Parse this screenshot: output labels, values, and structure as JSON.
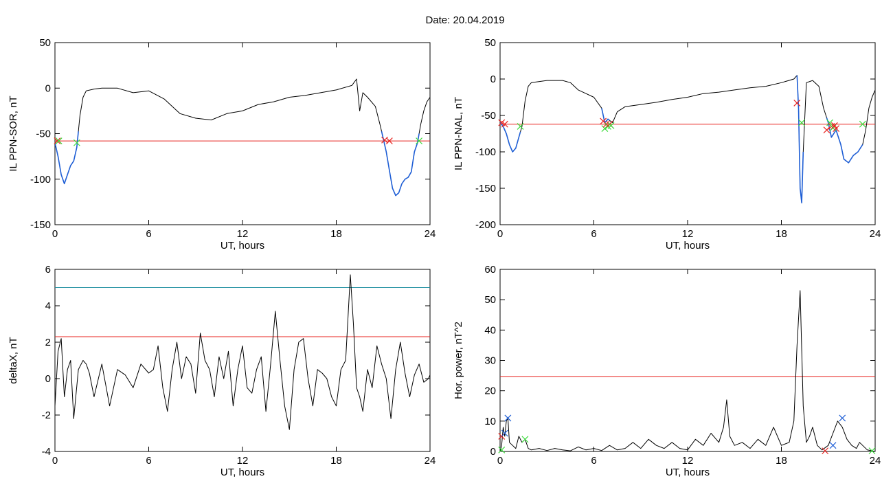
{
  "figure": {
    "title": "Date:  20.04.2019",
    "colors": {
      "trace": "#000000",
      "threshold": "#e8231f",
      "upper_threshold": "#1e8fa0",
      "highlight": "#1f5fd6",
      "marker_red": "#e8231f",
      "marker_green": "#3ddc3d",
      "marker_blue": "#1f5fd6"
    }
  },
  "chart_data": [
    {
      "type": "line",
      "id": "il-sor",
      "title": "",
      "xlabel": "UT, hours",
      "ylabel": "IL PPN-SOR, nT",
      "xlim": [
        0,
        24
      ],
      "ylim": [
        -150,
        50
      ],
      "xticks": [
        0,
        6,
        12,
        18,
        24
      ],
      "yticks": [
        -150,
        -100,
        -50,
        0,
        50
      ],
      "threshold": -58,
      "series": [
        {
          "style": "trace",
          "x": [
            0,
            0.2,
            0.4,
            0.6,
            0.8,
            1.0,
            1.2,
            1.4,
            1.6,
            1.8,
            2.0,
            2.5,
            3.0,
            4.0,
            5.0,
            6.0,
            7.0,
            7.5,
            8.0,
            9.0,
            10.0,
            11.0,
            12.0,
            13.0,
            14.0,
            15.0,
            16.0,
            17.0,
            18.0,
            19.0,
            19.3,
            19.5,
            19.7,
            20.0,
            20.5,
            20.8,
            21.0,
            21.2,
            21.4,
            21.6,
            21.8,
            22.0,
            22.2,
            22.4,
            22.6,
            22.8,
            23.0,
            23.2,
            23.4,
            23.6,
            23.8,
            24.0
          ],
          "y": [
            -60,
            -75,
            -95,
            -105,
            -95,
            -85,
            -80,
            -65,
            -30,
            -10,
            -3,
            -1,
            0,
            0,
            -5,
            -3,
            -12,
            -20,
            -28,
            -33,
            -35,
            -28,
            -25,
            -18,
            -15,
            -10,
            -8,
            -5,
            -2,
            3,
            10,
            -25,
            -5,
            -10,
            -20,
            -40,
            -55,
            -70,
            -90,
            -110,
            -118,
            -115,
            -105,
            -100,
            -98,
            -92,
            -70,
            -60,
            -40,
            -25,
            -15,
            -10
          ]
        }
      ],
      "highlight_segments": [
        [
          0,
          1.5
        ],
        [
          20.9,
          23.3
        ]
      ],
      "markers": [
        {
          "x": 0.15,
          "y": -58,
          "color": "red"
        },
        {
          "x": 0.25,
          "y": -58,
          "color": "green"
        },
        {
          "x": 1.4,
          "y": -60,
          "color": "green"
        },
        {
          "x": 21.1,
          "y": -57,
          "color": "red"
        },
        {
          "x": 21.4,
          "y": -58,
          "color": "red"
        },
        {
          "x": 23.3,
          "y": -58,
          "color": "green"
        }
      ]
    },
    {
      "type": "line",
      "id": "il-nal",
      "title": "",
      "xlabel": "UT, hours",
      "ylabel": "IL PPN-NAL, nT",
      "xlim": [
        0,
        24
      ],
      "ylim": [
        -200,
        50
      ],
      "xticks": [
        0,
        6,
        12,
        18,
        24
      ],
      "yticks": [
        -200,
        -150,
        -100,
        -50,
        0,
        50
      ],
      "threshold": -62,
      "series": [
        {
          "style": "trace",
          "x": [
            0,
            0.2,
            0.4,
            0.6,
            0.8,
            1.0,
            1.2,
            1.4,
            1.6,
            1.8,
            2.0,
            3.0,
            4.0,
            4.5,
            5.0,
            5.5,
            6.0,
            6.5,
            6.7,
            6.9,
            7.2,
            7.5,
            8.0,
            9.0,
            10.0,
            11.0,
            12.0,
            13.0,
            14.0,
            15.0,
            16.0,
            17.0,
            18.0,
            18.8,
            19.0,
            19.1,
            19.2,
            19.3,
            19.4,
            19.6,
            20.0,
            20.4,
            20.7,
            21.0,
            21.2,
            21.5,
            21.8,
            22.0,
            22.3,
            22.6,
            22.9,
            23.2,
            23.4,
            23.6,
            23.8,
            24.0
          ],
          "y": [
            -60,
            -65,
            -75,
            -90,
            -100,
            -95,
            -80,
            -65,
            -30,
            -10,
            -5,
            -2,
            -2,
            -5,
            -15,
            -20,
            -25,
            -40,
            -60,
            -55,
            -60,
            -45,
            -38,
            -35,
            -32,
            -28,
            -25,
            -20,
            -18,
            -15,
            -12,
            -10,
            -5,
            0,
            5,
            -40,
            -150,
            -170,
            -100,
            -5,
            -2,
            -10,
            -40,
            -60,
            -80,
            -70,
            -90,
            -110,
            -115,
            -105,
            -100,
            -90,
            -70,
            -40,
            -25,
            -15
          ]
        }
      ],
      "highlight_segments": [
        [
          0,
          1.3
        ],
        [
          6.5,
          7.0
        ],
        [
          19.0,
          19.4
        ],
        [
          20.9,
          23.2
        ]
      ],
      "markers": [
        {
          "x": 0.1,
          "y": -60,
          "color": "red"
        },
        {
          "x": 0.3,
          "y": -62,
          "color": "red"
        },
        {
          "x": 1.3,
          "y": -65,
          "color": "green"
        },
        {
          "x": 6.6,
          "y": -58,
          "color": "red"
        },
        {
          "x": 6.7,
          "y": -68,
          "color": "green"
        },
        {
          "x": 6.8,
          "y": -62,
          "color": "red"
        },
        {
          "x": 6.9,
          "y": -65,
          "color": "green"
        },
        {
          "x": 7.0,
          "y": -62,
          "color": "red"
        },
        {
          "x": 7.1,
          "y": -64,
          "color": "green"
        },
        {
          "x": 19.0,
          "y": -33,
          "color": "red"
        },
        {
          "x": 19.3,
          "y": -60,
          "color": "green"
        },
        {
          "x": 20.9,
          "y": -70,
          "color": "red"
        },
        {
          "x": 21.1,
          "y": -60,
          "color": "green"
        },
        {
          "x": 21.2,
          "y": -65,
          "color": "red"
        },
        {
          "x": 21.3,
          "y": -67,
          "color": "green"
        },
        {
          "x": 21.4,
          "y": -64,
          "color": "red"
        },
        {
          "x": 21.5,
          "y": -68,
          "color": "red"
        },
        {
          "x": 23.2,
          "y": -62,
          "color": "green"
        }
      ]
    },
    {
      "type": "line",
      "id": "deltax",
      "title": "",
      "xlabel": "UT, hours",
      "ylabel": "deltaX, nT",
      "xlim": [
        0,
        24
      ],
      "ylim": [
        -4,
        6
      ],
      "xticks": [
        0,
        6,
        12,
        18,
        24
      ],
      "yticks": [
        -4,
        -2,
        0,
        2,
        4,
        6
      ],
      "threshold": 2.3,
      "upper_threshold": 5.0,
      "series": [
        {
          "style": "trace",
          "x": [
            0,
            0.2,
            0.4,
            0.6,
            0.8,
            1.0,
            1.2,
            1.5,
            1.8,
            2.0,
            2.2,
            2.5,
            3.0,
            3.5,
            4.0,
            4.5,
            5.0,
            5.5,
            6.0,
            6.3,
            6.6,
            6.9,
            7.2,
            7.5,
            7.8,
            8.1,
            8.4,
            8.7,
            9.0,
            9.3,
            9.6,
            9.9,
            10.2,
            10.5,
            10.8,
            11.1,
            11.4,
            11.7,
            12.0,
            12.3,
            12.6,
            12.9,
            13.2,
            13.5,
            13.8,
            14.1,
            14.4,
            14.7,
            15.0,
            15.3,
            15.6,
            15.9,
            16.2,
            16.5,
            16.8,
            17.1,
            17.4,
            17.7,
            18.0,
            18.3,
            18.6,
            18.9,
            19.1,
            19.3,
            19.5,
            19.7,
            20.0,
            20.3,
            20.6,
            20.9,
            21.2,
            21.5,
            21.8,
            22.1,
            22.4,
            22.7,
            23.0,
            23.3,
            23.6,
            23.9,
            24.0
          ],
          "y": [
            -1.5,
            1.5,
            2.2,
            -1.0,
            0.5,
            1.0,
            -2.2,
            0.5,
            1.0,
            0.8,
            0.3,
            -1.0,
            0.8,
            -1.5,
            0.5,
            0.2,
            -0.5,
            0.8,
            0.3,
            0.5,
            1.8,
            -0.5,
            -1.8,
            0.5,
            2.0,
            0.0,
            1.2,
            0.8,
            -0.8,
            2.5,
            1.0,
            0.5,
            -1.0,
            1.2,
            0.0,
            1.5,
            -1.5,
            0.5,
            1.8,
            -0.5,
            -0.8,
            0.5,
            1.2,
            -1.8,
            0.8,
            3.7,
            1.0,
            -1.5,
            -2.8,
            0.5,
            2.0,
            2.2,
            0.0,
            -1.5,
            0.5,
            0.3,
            0.0,
            -1.0,
            -1.5,
            0.5,
            1.0,
            5.7,
            3.0,
            -0.5,
            -1.0,
            -1.8,
            0.5,
            -0.5,
            1.8,
            0.8,
            0.0,
            -2.2,
            0.5,
            2.0,
            0.3,
            -1.0,
            0.2,
            0.8,
            -0.2,
            0.0,
            0.2
          ]
        }
      ],
      "markers": []
    },
    {
      "type": "line",
      "id": "hor-power",
      "title": "",
      "xlabel": "UT, hours",
      "ylabel": "Hor. power, nT^2",
      "xlim": [
        0,
        24
      ],
      "ylim": [
        0,
        60
      ],
      "xticks": [
        0,
        6,
        12,
        18,
        24
      ],
      "yticks": [
        0,
        10,
        20,
        30,
        40,
        50,
        60
      ],
      "threshold": 24.7,
      "series": [
        {
          "style": "trace",
          "x": [
            0,
            0.1,
            0.2,
            0.3,
            0.4,
            0.5,
            0.6,
            0.8,
            1.0,
            1.2,
            1.4,
            1.6,
            1.8,
            2.0,
            2.5,
            3.0,
            3.5,
            4.0,
            4.5,
            5.0,
            5.5,
            6.0,
            6.5,
            7.0,
            7.5,
            8.0,
            8.5,
            9.0,
            9.5,
            10.0,
            10.5,
            11.0,
            11.5,
            12.0,
            12.5,
            13.0,
            13.5,
            14.0,
            14.3,
            14.5,
            14.7,
            15.0,
            15.5,
            16.0,
            16.5,
            17.0,
            17.5,
            18.0,
            18.5,
            18.8,
            19.0,
            19.2,
            19.4,
            19.6,
            19.8,
            20.0,
            20.3,
            20.6,
            21.0,
            21.3,
            21.6,
            21.9,
            22.2,
            22.5,
            22.8,
            23.0,
            23.5,
            24.0
          ],
          "y": [
            0,
            2,
            8,
            5,
            10,
            11,
            3,
            2,
            1,
            5,
            3,
            4,
            1,
            0.5,
            1,
            0.3,
            1,
            0.5,
            0.2,
            1.5,
            0.5,
            1,
            0.3,
            2,
            0.5,
            1,
            3,
            1,
            4,
            2,
            1,
            3,
            1,
            0.5,
            4,
            2,
            6,
            3,
            8,
            17,
            5,
            2,
            3,
            1,
            4,
            2,
            8,
            2,
            3,
            10,
            35,
            53,
            15,
            3,
            5,
            8,
            2,
            0.5,
            2,
            6,
            10,
            8,
            4,
            2,
            1,
            3,
            0.5,
            0
          ]
        }
      ],
      "markers": [
        {
          "x": 0.1,
          "y": 5,
          "color": "red"
        },
        {
          "x": 0.3,
          "y": 6,
          "color": "blue"
        },
        {
          "x": 0.5,
          "y": 11,
          "color": "blue"
        },
        {
          "x": 0.1,
          "y": 0.5,
          "color": "green"
        },
        {
          "x": 1.6,
          "y": 4,
          "color": "green"
        },
        {
          "x": 21.3,
          "y": 2,
          "color": "blue"
        },
        {
          "x": 21.9,
          "y": 11,
          "color": "blue"
        },
        {
          "x": 20.8,
          "y": 0.2,
          "color": "red"
        },
        {
          "x": 23.8,
          "y": 0.2,
          "color": "green"
        }
      ]
    }
  ]
}
